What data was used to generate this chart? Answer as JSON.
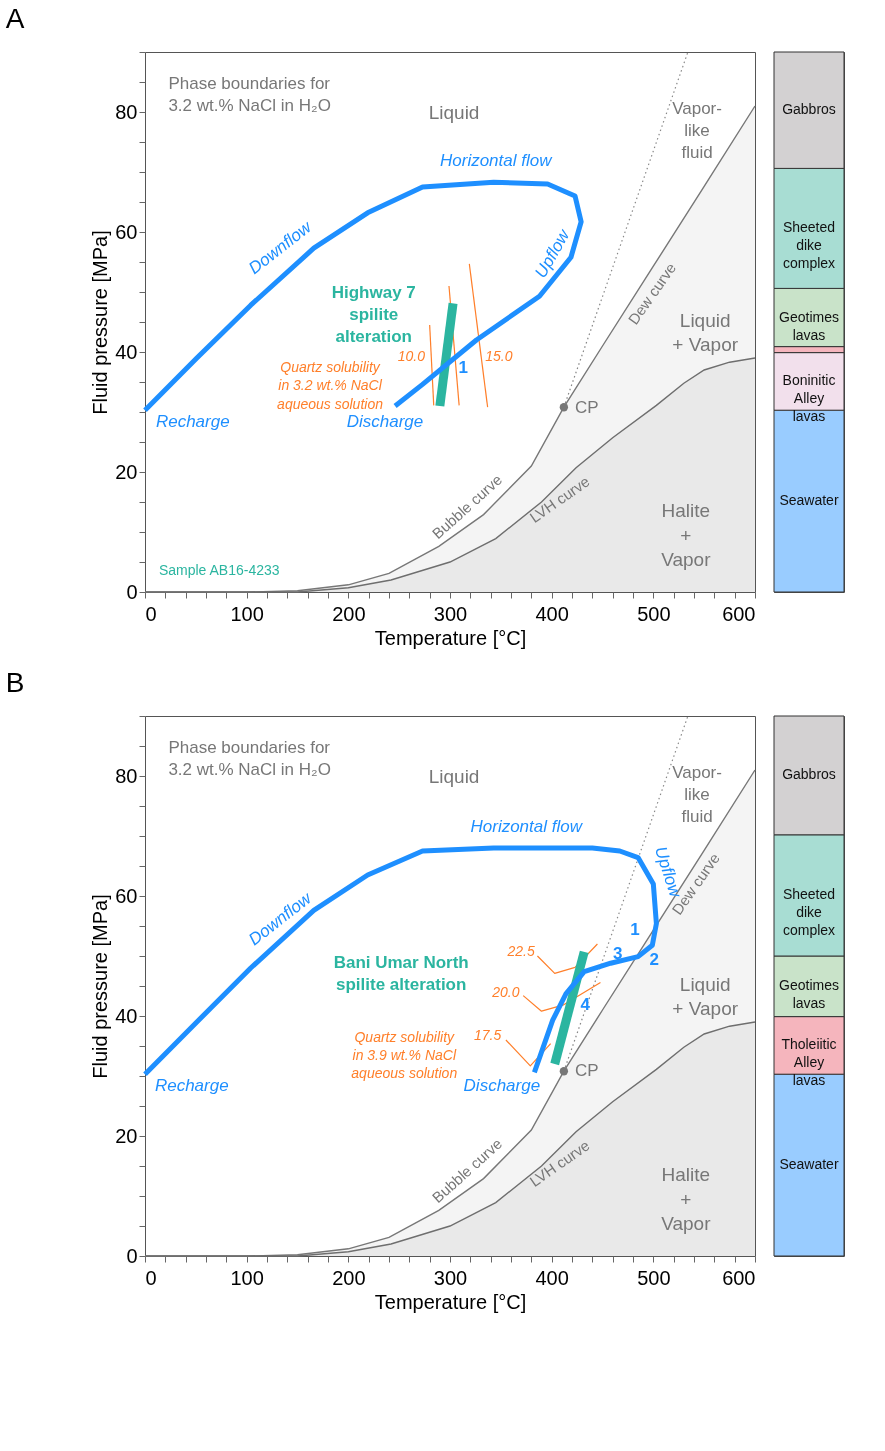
{
  "chart_data": [
    {
      "type": "line",
      "title": "A",
      "xlabel": "Temperature [°C]",
      "ylabel": "Fluid pressure [MPa]",
      "xlim": [
        0,
        600
      ],
      "ylim": [
        0,
        90
      ],
      "xticks": [
        0,
        {
          "value": 20,
          "label": null
        },
        {
          "value": 40,
          "label": null
        },
        {
          "value": 60,
          "label": null
        },
        {
          "value": 80,
          "label": null
        },
        100,
        {
          "value": 120,
          "label": null
        },
        {
          "value": 140,
          "label": null
        },
        {
          "value": 160,
          "label": null
        },
        {
          "value": 180,
          "label": null
        },
        200,
        {
          "value": 220,
          "label": null
        },
        {
          "value": 240,
          "label": null
        },
        {
          "value": 260,
          "label": null
        },
        {
          "value": 280,
          "label": null
        },
        300,
        {
          "value": 320,
          "label": null
        },
        {
          "value": 340,
          "label": null
        },
        {
          "value": 360,
          "label": null
        },
        {
          "value": 380,
          "label": null
        },
        400,
        {
          "value": 420,
          "label": null
        },
        {
          "value": 440,
          "label": null
        },
        {
          "value": 460,
          "label": null
        },
        {
          "value": 480,
          "label": null
        },
        500,
        {
          "value": 520,
          "label": null
        },
        {
          "value": 540,
          "label": null
        },
        {
          "value": 560,
          "label": null
        },
        {
          "value": 580,
          "label": null
        },
        600
      ],
      "yticks": [
        0,
        {
          "value": 5,
          "label": null
        },
        {
          "value": 10,
          "label": null
        },
        {
          "value": 15,
          "label": null
        },
        20,
        {
          "value": 25,
          "label": null
        },
        {
          "value": 30,
          "label": null
        },
        {
          "value": 35,
          "label": null
        },
        40,
        {
          "value": 45,
          "label": null
        },
        {
          "value": 50,
          "label": null
        },
        {
          "value": 55,
          "label": null
        },
        60,
        {
          "value": 65,
          "label": null
        },
        {
          "value": 70,
          "label": null
        },
        {
          "value": 75,
          "label": null
        },
        80,
        {
          "value": 85,
          "label": null
        },
        {
          "value": 90,
          "label": null
        }
      ],
      "grid": false,
      "legend": false,
      "series": [
        {
          "type": "area",
          "color": "#777777",
          "x": [
            0,
            100,
            150,
            200,
            240,
            289,
            333,
            380,
            412,
            450,
            500,
            550,
            600
          ],
          "values": [
            0,
            0,
            0.2,
            1.2,
            3.1,
            7.6,
            12.9,
            21,
            30.8,
            41,
            54.3,
            67.6,
            81
          ]
        },
        {
          "type": "area",
          "color": "#6e6e6e",
          "x": [
            0,
            150,
            200,
            242,
            300,
            345,
            390,
            424,
            460,
            503,
            530,
            550,
            575,
            600
          ],
          "values": [
            0,
            0,
            0.7,
            2.0,
            5,
            8.9,
            15,
            20.7,
            25.7,
            31.1,
            34.8,
            37,
            38.3,
            39
          ]
        },
        {
          "type": "line",
          "line_style": "dotted",
          "color": "#888888",
          "x": [
            412,
            534
          ],
          "values": [
            30.8,
            90
          ]
        },
        {
          "type": "line",
          "color": "#ff7f2a",
          "x": [
            280,
            284
          ],
          "values": [
            44.5,
            31.1
          ]
        },
        {
          "type": "line",
          "color": "#ff7f2a",
          "x": [
            299,
            309
          ],
          "values": [
            51,
            31.1
          ]
        },
        {
          "type": "line",
          "color": "#ff7f2a",
          "x": [
            319,
            337
          ],
          "values": [
            54.7,
            30.8
          ]
        },
        {
          "type": "line",
          "color": "#2bb5a0",
          "x": [
            290,
            303
          ],
          "values": [
            31,
            48.1
          ]
        },
        {
          "type": "line",
          "color": "#1e8fff",
          "x": [
            0,
            51,
            104,
            166,
            219,
            273,
            343,
            396,
            423,
            429,
            419,
            388,
            326,
            273,
            246
          ],
          "values": [
            30.3,
            39,
            47.8,
            57.3,
            63.2,
            67.5,
            68.3,
            68,
            66,
            61.7,
            55.8,
            49.3,
            42,
            34.6,
            31
          ]
        },
        {
          "type": "scatter",
          "color": "#777777",
          "x": [
            412
          ],
          "values": [
            30.8
          ]
        }
      ],
      "annotations": [
        "Phase boundaries for\n3.2 wt.% NaCl in H₂O",
        "Liquid",
        "Vapor-\nlike\nfluid",
        "Liquid\n+ Vapor",
        "Halite\n+\nVapor",
        "Horizontal flow",
        "Downflow",
        "Upflow",
        "Recharge",
        "Discharge",
        "1",
        "Highway 7\nspilite\nalteration",
        "Quartz solubility\nin 3.2 wt.% NaCl\naqueous solution",
        "10.0",
        "15.0",
        "CP",
        "Dew curve",
        "Bubble curve",
        "LVH curve",
        "Sample AB16-4233"
      ]
    },
    {
      "type": "bar",
      "stacked": true,
      "categories": [
        null
      ],
      "ylim": [
        0,
        90
      ],
      "tick_labels": false,
      "series": [
        {
          "name": "Seawater",
          "color": "#99ccff",
          "values": [
            30.3
          ]
        },
        {
          "name": "Boninitic\nAlley\nlavas",
          "color": "#f2e0ec",
          "values": [
            9.6
          ]
        },
        {
          "color": "#f5b5bd",
          "values": [
            1.0
          ]
        },
        {
          "name": "Geotimes\nlavas",
          "color": "#c9e3c9",
          "values": [
            9.7
          ]
        },
        {
          "name": "Sheeted\ndike\ncomplex",
          "color": "#a8ddd3",
          "values": [
            20
          ]
        },
        {
          "name": "Gabbros",
          "color": "#d3d1d2",
          "values": [
            19.4
          ]
        }
      ]
    },
    {
      "type": "line",
      "title": "B",
      "xlabel": "Temperature [°C]",
      "ylabel": "Fluid pressure [MPa]",
      "xlim": [
        0,
        600
      ],
      "ylim": [
        0,
        90
      ],
      "xticks": [
        0,
        {
          "value": 20,
          "label": null
        },
        {
          "value": 40,
          "label": null
        },
        {
          "value": 60,
          "label": null
        },
        {
          "value": 80,
          "label": null
        },
        100,
        {
          "value": 120,
          "label": null
        },
        {
          "value": 140,
          "label": null
        },
        {
          "value": 160,
          "label": null
        },
        {
          "value": 180,
          "label": null
        },
        200,
        {
          "value": 220,
          "label": null
        },
        {
          "value": 240,
          "label": null
        },
        {
          "value": 260,
          "label": null
        },
        {
          "value": 280,
          "label": null
        },
        300,
        {
          "value": 320,
          "label": null
        },
        {
          "value": 340,
          "label": null
        },
        {
          "value": 360,
          "label": null
        },
        {
          "value": 380,
          "label": null
        },
        400,
        {
          "value": 420,
          "label": null
        },
        {
          "value": 440,
          "label": null
        },
        {
          "value": 460,
          "label": null
        },
        {
          "value": 480,
          "label": null
        },
        500,
        {
          "value": 520,
          "label": null
        },
        {
          "value": 540,
          "label": null
        },
        {
          "value": 560,
          "label": null
        },
        {
          "value": 580,
          "label": null
        },
        600
      ],
      "yticks": [
        0,
        {
          "value": 5,
          "label": null
        },
        {
          "value": 10,
          "label": null
        },
        {
          "value": 15,
          "label": null
        },
        20,
        {
          "value": 25,
          "label": null
        },
        {
          "value": 30,
          "label": null
        },
        {
          "value": 35,
          "label": null
        },
        40,
        {
          "value": 45,
          "label": null
        },
        {
          "value": 50,
          "label": null
        },
        {
          "value": 55,
          "label": null
        },
        60,
        {
          "value": 65,
          "label": null
        },
        {
          "value": 70,
          "label": null
        },
        {
          "value": 75,
          "label": null
        },
        80,
        {
          "value": 85,
          "label": null
        },
        {
          "value": 90,
          "label": null
        }
      ],
      "grid": false,
      "legend": false,
      "series": [
        {
          "type": "area",
          "color": "#777777",
          "x": [
            0,
            100,
            150,
            200,
            240,
            289,
            333,
            380,
            412,
            450,
            500,
            550,
            600
          ],
          "values": [
            0,
            0,
            0.2,
            1.2,
            3.1,
            7.6,
            12.9,
            21,
            30.8,
            41,
            54.3,
            67.6,
            81
          ]
        },
        {
          "type": "area",
          "color": "#6e6e6e",
          "x": [
            0,
            150,
            200,
            242,
            300,
            345,
            390,
            424,
            460,
            503,
            530,
            550,
            575,
            600
          ],
          "values": [
            0,
            0,
            0.7,
            2.0,
            5,
            8.9,
            15,
            20.7,
            25.7,
            31.1,
            34.8,
            37,
            38.3,
            39
          ]
        },
        {
          "type": "line",
          "line_style": "dotted",
          "color": "#888888",
          "x": [
            412,
            534
          ],
          "values": [
            30.8,
            90
          ]
        },
        {
          "type": "line",
          "color": "#ff7f2a",
          "x": [
            386,
            403,
            423,
            445
          ],
          "values": [
            50,
            47.1,
            48.1,
            52
          ]
        },
        {
          "type": "line",
          "color": "#ff7f2a",
          "x": [
            372,
            390,
            411,
            448
          ],
          "values": [
            43.4,
            40.8,
            41.8,
            45.6
          ]
        },
        {
          "type": "line",
          "color": "#ff7f2a",
          "x": [
            355,
            379,
            399
          ],
          "values": [
            36,
            31.7,
            35.4
          ]
        },
        {
          "type": "line",
          "color": "#2bb5a0",
          "x": [
            403,
            432
          ],
          "values": [
            32,
            50.7
          ]
        },
        {
          "type": "line",
          "color": "#1e8fff",
          "x": [
            0,
            51,
            104,
            166,
            219,
            273,
            343,
            396,
            440,
            467,
            485,
            500,
            503,
            499,
            485,
            458,
            432,
            414,
            401,
            383
          ],
          "values": [
            30.3,
            39,
            48,
            57.6,
            63.5,
            67.5,
            68,
            68,
            68,
            67.5,
            66.4,
            62,
            55.4,
            51.8,
            49.9,
            48.8,
            47.4,
            43.7,
            39.3,
            30.6
          ]
        },
        {
          "type": "scatter",
          "color": "#777777",
          "x": [
            412
          ],
          "values": [
            30.8
          ]
        }
      ],
      "annotations": [
        "Phase boundaries for\n3.2 wt.% NaCl in H₂O",
        "Liquid",
        "Vapor-\nlike\nfluid",
        "Liquid\n+ Vapor",
        "Halite\n+\nVapor",
        "Horizontal flow",
        "Downflow",
        "Upflow",
        "Recharge",
        "Discharge",
        "1",
        "2",
        "3",
        "4",
        "Bani Umar North\nspilite alteration",
        "Quartz solubility\nin 3.9 wt.% NaCl\naqueous solution",
        "22.5",
        "20.0",
        "17.5",
        "CP",
        "Dew curve",
        "Bubble curve",
        "LVH curve"
      ]
    },
    {
      "type": "bar",
      "stacked": true,
      "categories": [
        null
      ],
      "ylim": [
        0,
        90
      ],
      "tick_labels": false,
      "series": [
        {
          "name": "Seawater",
          "color": "#99ccff",
          "values": [
            30.3
          ]
        },
        {
          "name": "Tholeiitic\nAlley\nlavas",
          "color": "#f5b5bd",
          "values": [
            9.6
          ]
        },
        {
          "name": "Geotimes\nlavas",
          "color": "#c9e3c9",
          "values": [
            10.1
          ]
        },
        {
          "name": "Sheeted\ndike\ncomplex",
          "color": "#a8ddd3",
          "values": [
            20.2
          ]
        },
        {
          "name": "Gabbros",
          "color": "#d3d1d2",
          "values": [
            19.8
          ]
        }
      ]
    }
  ]
}
